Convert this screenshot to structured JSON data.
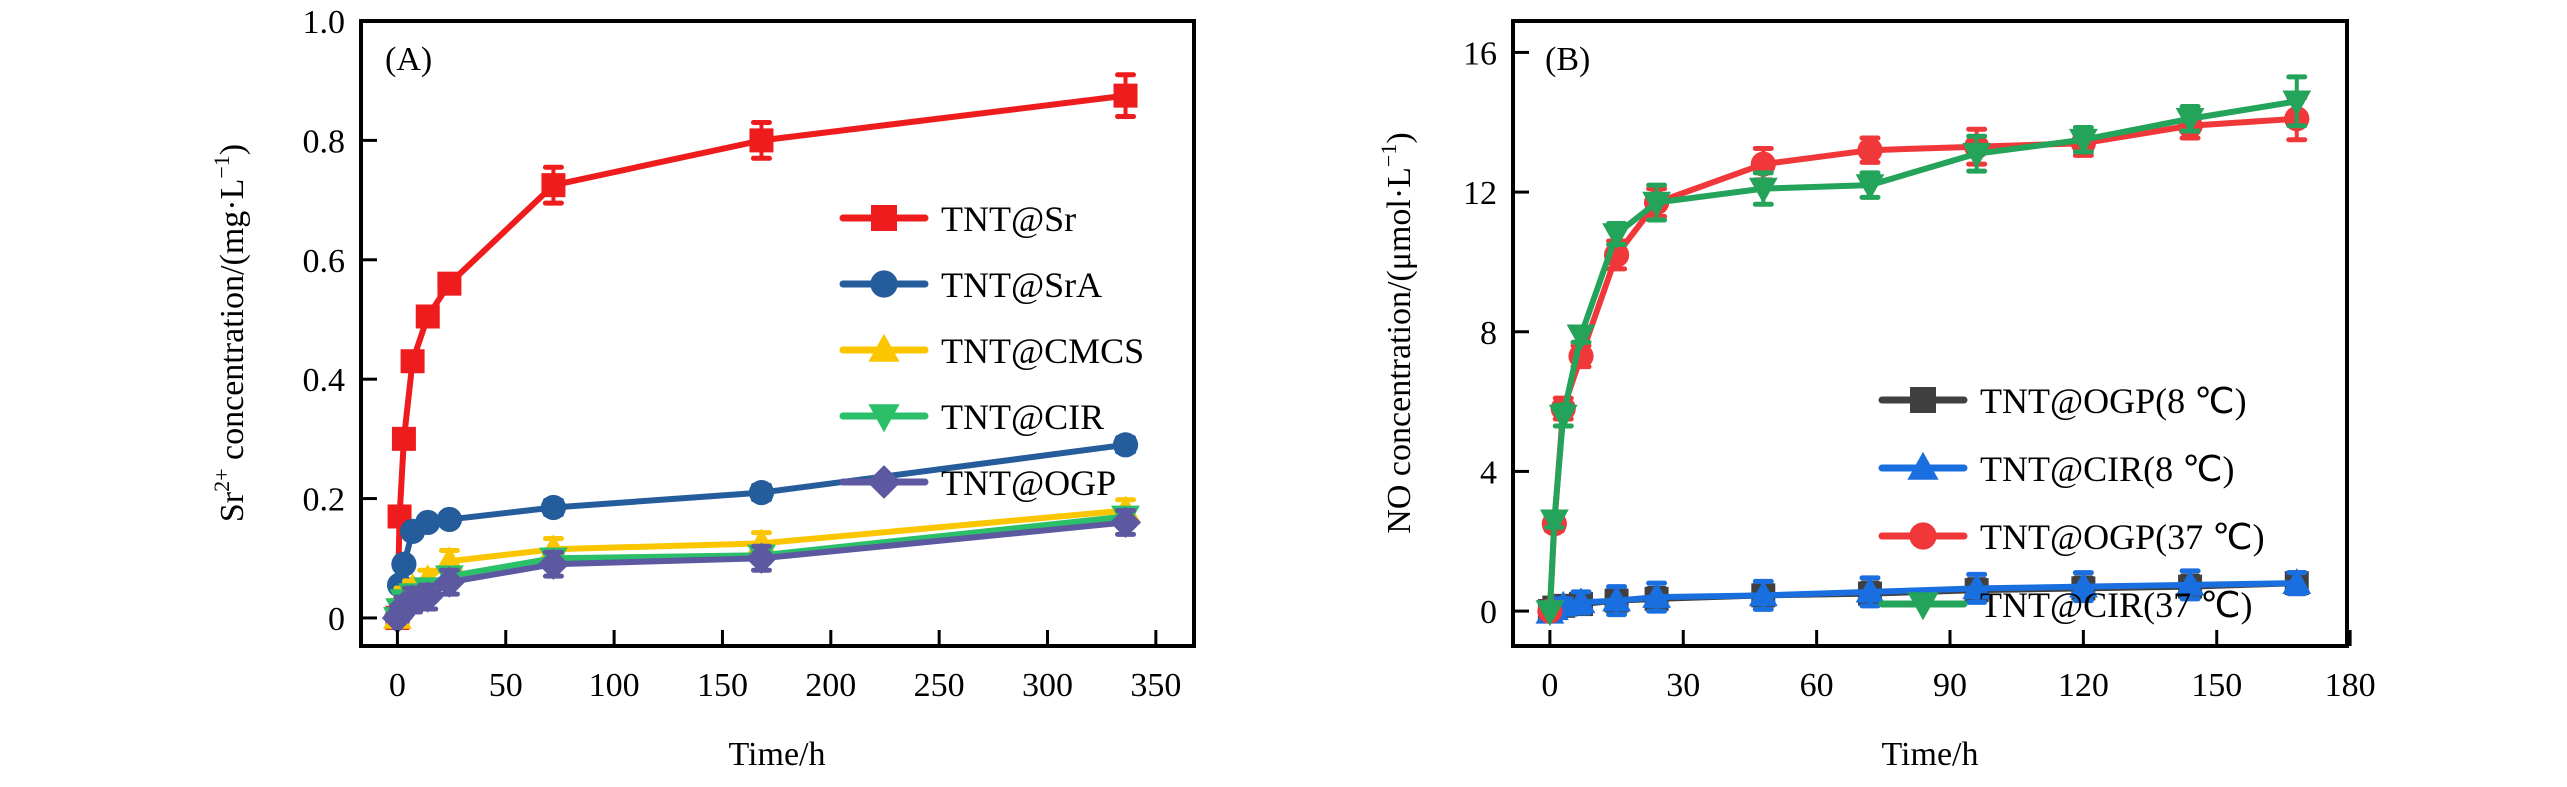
{
  "chart_data": [
    {
      "type": "line",
      "panel_label": "(A)",
      "title": "",
      "xlabel": "Time/h",
      "ylabel": "Sr²⁺ concentration/(mg·L⁻¹)",
      "ylabel_parts": {
        "base": "Sr",
        "sup": "2+",
        "rest": " concentration/(mg·L",
        "unit_sup": "−1",
        "close": ")"
      },
      "xlim": [
        -16.8,
        367.6
      ],
      "ylim": [
        -0.047,
        1.0
      ],
      "xticks": [
        0,
        50,
        100,
        150,
        200,
        250,
        300,
        350
      ],
      "xtick_labels": [
        "0",
        "50",
        "100",
        "150",
        "200",
        "250",
        "300",
        "350"
      ],
      "yticks": [
        0,
        0.2,
        0.4,
        0.6,
        0.8,
        1.0
      ],
      "ytick_labels": [
        "0",
        "0.2",
        "0.4",
        "0.6",
        "0.8",
        "1.0"
      ],
      "grid": false,
      "legend_position": "center-right",
      "x": [
        0,
        1,
        3,
        7,
        14,
        24,
        72,
        168,
        336
      ],
      "series": [
        {
          "name": "TNT@Sr",
          "color": "#ee1c1c",
          "marker": "square",
          "values": [
            0,
            0.17,
            0.3,
            0.43,
            0.505,
            0.56,
            0.725,
            0.8,
            0.875
          ],
          "errors": [
            0,
            0.01,
            0.01,
            0.01,
            0.01,
            0.015,
            0.03,
            0.03,
            0.035
          ]
        },
        {
          "name": "TNT@SrA",
          "color": "#245c9c",
          "marker": "circle",
          "values": [
            0,
            0.055,
            0.09,
            0.145,
            0.16,
            0.165,
            0.185,
            0.21,
            0.29
          ],
          "errors": [
            0,
            0.01,
            0.01,
            0.01,
            0.01,
            0.01,
            0.012,
            0.012,
            0.012
          ]
        },
        {
          "name": "TNT@CMCS",
          "color": "#fbc600",
          "marker": "triangle-up",
          "values": [
            0,
            0.02,
            0.04,
            0.05,
            0.065,
            0.095,
            0.115,
            0.125,
            0.18
          ],
          "errors": [
            0,
            0.01,
            0.01,
            0.012,
            0.015,
            0.018,
            0.018,
            0.018,
            0.018
          ]
        },
        {
          "name": "TNT@CIR",
          "color": "#2bbf6a",
          "marker": "triangle-down",
          "values": [
            0,
            0.015,
            0.03,
            0.04,
            0.05,
            0.07,
            0.1,
            0.105,
            0.17
          ],
          "errors": [
            0,
            0.008,
            0.01,
            0.01,
            0.012,
            0.012,
            0.012,
            0.012,
            0.012
          ]
        },
        {
          "name": "TNT@OGP",
          "color": "#5c59a0",
          "marker": "diamond",
          "values": [
            0,
            0.005,
            0.02,
            0.03,
            0.035,
            0.06,
            0.09,
            0.1,
            0.16
          ],
          "errors": [
            0,
            0.01,
            0.015,
            0.02,
            0.02,
            0.02,
            0.02,
            0.02,
            0.02
          ]
        }
      ]
    },
    {
      "type": "line",
      "panel_label": "(B)",
      "title": "",
      "xlabel": "Time/h",
      "ylabel": "NO concentration/(μmol·L⁻¹)",
      "ylabel_parts": {
        "base": "NO concentration/(μmol·L",
        "unit_sup": "−1",
        "close": ")"
      },
      "xlim": [
        -8.3,
        179.3
      ],
      "ylim": [
        -1.0,
        16.9
      ],
      "xticks": [
        0,
        30,
        60,
        90,
        120,
        150,
        180
      ],
      "xtick_labels": [
        "0",
        "30",
        "60",
        "90",
        "120",
        "150",
        "180"
      ],
      "yticks": [
        0,
        4,
        8,
        12,
        16
      ],
      "ytick_labels": [
        "0",
        "4",
        "8",
        "12",
        "16"
      ],
      "grid": false,
      "legend_position": "center-right",
      "x": [
        0,
        1,
        3,
        7,
        15,
        24,
        48,
        72,
        96,
        120,
        144,
        168
      ],
      "series": [
        {
          "name": "TNT@OGP(8 ℃)",
          "color": "#404040",
          "marker": "square",
          "values": [
            0,
            0.1,
            0.15,
            0.2,
            0.3,
            0.35,
            0.45,
            0.5,
            0.6,
            0.65,
            0.7,
            0.8
          ],
          "errors": [
            0,
            0.2,
            0.2,
            0.2,
            0.3,
            0.3,
            0.3,
            0.3,
            0.3,
            0.3,
            0.3,
            0.3
          ]
        },
        {
          "name": "TNT@CIR(8 ℃)",
          "color": "#1a6fe0",
          "marker": "triangle-up",
          "values": [
            -0.05,
            0.05,
            0.15,
            0.25,
            0.3,
            0.4,
            0.45,
            0.55,
            0.65,
            0.7,
            0.75,
            0.8
          ],
          "errors": [
            0.2,
            0.2,
            0.2,
            0.3,
            0.4,
            0.4,
            0.4,
            0.4,
            0.4,
            0.4,
            0.4,
            0.3
          ]
        },
        {
          "name": "TNT@OGP(37 ℃)",
          "color": "#f0373a",
          "marker": "circle",
          "values": [
            0,
            2.5,
            5.8,
            7.3,
            10.2,
            11.7,
            12.8,
            13.2,
            13.3,
            13.4,
            13.9,
            14.1
          ],
          "errors": [
            0,
            0.2,
            0.3,
            0.3,
            0.4,
            0.4,
            0.45,
            0.35,
            0.5,
            0.35,
            0.35,
            0.6
          ]
        },
        {
          "name": "TNT@CIR(37 ℃)",
          "color": "#24a35a",
          "marker": "triangle-down",
          "values": [
            0,
            2.6,
            5.6,
            7.9,
            10.8,
            11.7,
            12.1,
            12.2,
            13.1,
            13.5,
            14.1,
            14.6
          ],
          "errors": [
            0,
            0.2,
            0.3,
            0.2,
            0.3,
            0.5,
            0.45,
            0.35,
            0.5,
            0.35,
            0.35,
            0.7
          ]
        }
      ]
    }
  ]
}
